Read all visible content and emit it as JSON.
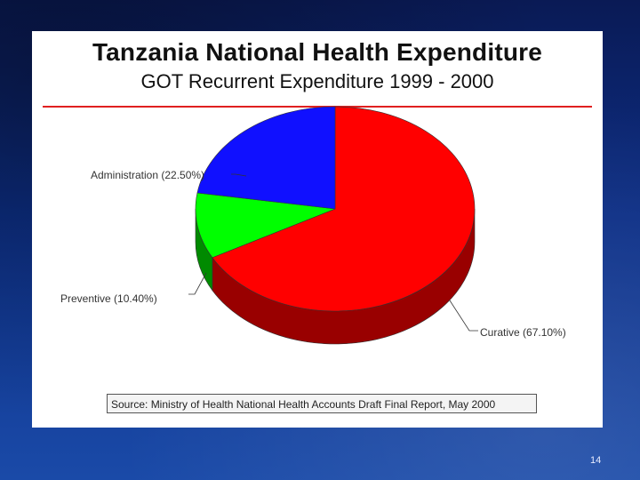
{
  "slide": {
    "title": "Tanzania National Health Expenditure",
    "subtitle": "GOT Recurrent Expenditure 1999 - 2000",
    "source": "Source:  Ministry of Health  National Health Accounts  Draft Final Report, May 2000",
    "page_number": "14"
  },
  "chart_data": {
    "type": "pie",
    "title": "Tanzania National Health Expenditure",
    "subtitle": "GOT Recurrent Expenditure 1999 - 2000",
    "slices": [
      {
        "label": "Curative (67.10%)",
        "value": 67.1,
        "color": "#ff0000",
        "side_color": "#990000"
      },
      {
        "label": "Preventive (10.40%)",
        "value": 10.4,
        "color": "#00ff00",
        "side_color": "#008a00"
      },
      {
        "label": "Administration (22.50%)",
        "value": 22.5,
        "color": "#1010ff",
        "side_color": "#000099"
      }
    ]
  }
}
